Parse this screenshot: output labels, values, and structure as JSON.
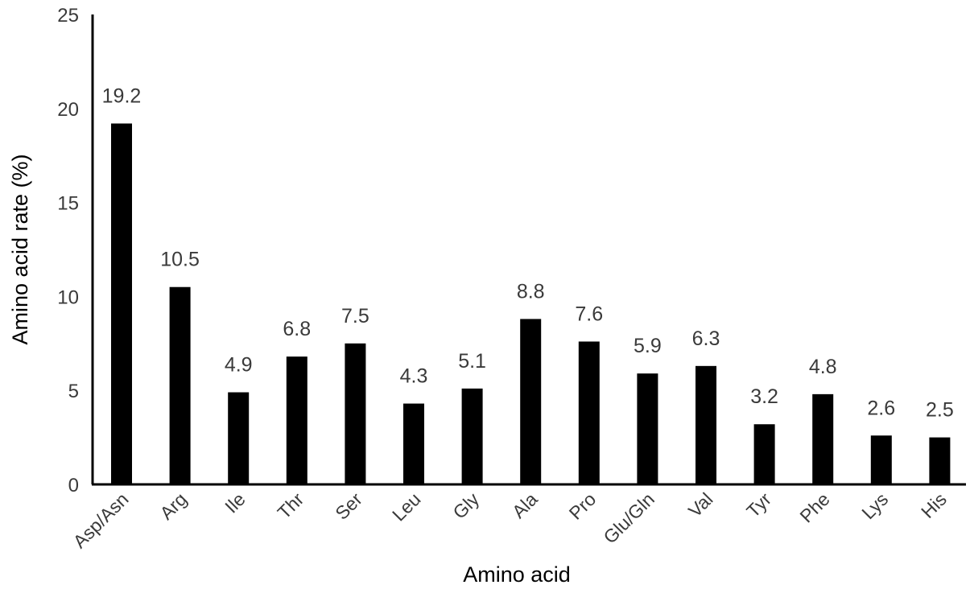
{
  "chart_data": {
    "type": "bar",
    "title": "",
    "xlabel": "Amino acid",
    "ylabel": "Amino acid rate (%)",
    "ylim": [
      0,
      25
    ],
    "yticks": [
      "0",
      "5",
      "10",
      "15",
      "20",
      "25"
    ],
    "grid": false,
    "categories": [
      "Asp/Asn",
      "Arg",
      "Ile",
      "Thr",
      "Ser",
      "Leu",
      "Gly",
      "Ala",
      "Pro",
      "Glu/Gln",
      "Val",
      "Tyr",
      "Phe",
      "Lys",
      "His"
    ],
    "values": [
      19.2,
      10.5,
      4.9,
      6.8,
      7.5,
      4.3,
      5.1,
      8.8,
      7.6,
      5.9,
      6.3,
      3.2,
      4.8,
      2.6,
      2.5
    ],
    "data_labels": [
      "19.2",
      "10.5",
      "4.9",
      "6.8",
      "7.5",
      "4.3",
      "5.1",
      "8.8",
      "7.6",
      "5.9",
      "6.3",
      "3.2",
      "4.8",
      "2.6",
      "2.5"
    ],
    "bar_color": "#000000"
  }
}
